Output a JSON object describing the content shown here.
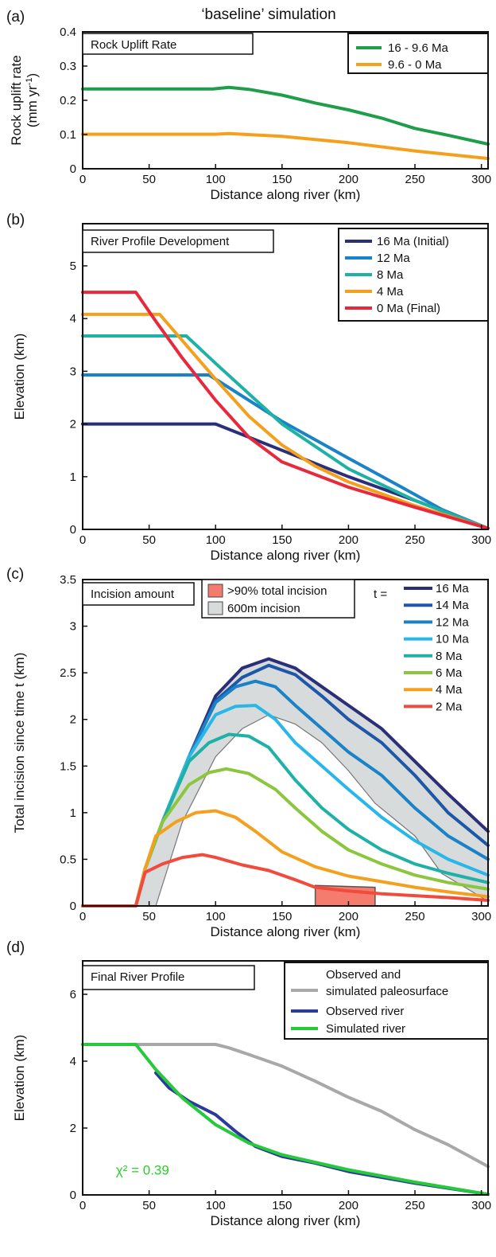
{
  "figure": {
    "title": "‘baseline’ simulation",
    "panel_labels": [
      "(a)",
      "(b)",
      "(c)",
      "(d)"
    ]
  },
  "chart_data": [
    {
      "type": "line",
      "panel": "(a)",
      "box_title": "Rock Uplift Rate",
      "xlabel": "Distance along river (km)",
      "ylabel": "Rock uplift rate",
      "ylabel_units": "(mm yr-1)",
      "xlim": [
        0,
        305
      ],
      "ylim": [
        0,
        0.4
      ],
      "xticks": [
        0,
        50,
        100,
        150,
        200,
        250,
        300
      ],
      "yticks": [
        0,
        0.1,
        0.2,
        0.3,
        0.4
      ],
      "legend_position": "top-right",
      "series": [
        {
          "name": "16 - 9.6 Ma",
          "color": "#1f9e4a",
          "x": [
            0,
            50,
            98,
            110,
            125,
            150,
            175,
            200,
            225,
            250,
            275,
            305
          ],
          "y": [
            0.233,
            0.233,
            0.233,
            0.238,
            0.232,
            0.215,
            0.192,
            0.172,
            0.148,
            0.118,
            0.098,
            0.072
          ]
        },
        {
          "name": "9.6 - 0 Ma",
          "color": "#f5a01c",
          "x": [
            0,
            50,
            100,
            110,
            150,
            200,
            250,
            305
          ],
          "y": [
            0.101,
            0.101,
            0.101,
            0.103,
            0.095,
            0.076,
            0.052,
            0.03
          ]
        }
      ]
    },
    {
      "type": "line",
      "panel": "(b)",
      "box_title": "River Profile Development",
      "xlabel": "Distance along river (km)",
      "ylabel": "Elevation (km)",
      "xlim": [
        0,
        305
      ],
      "ylim": [
        0,
        5.8
      ],
      "xticks": [
        0,
        50,
        100,
        150,
        200,
        250,
        300
      ],
      "yticks": [
        0,
        1,
        2,
        3,
        4,
        5
      ],
      "legend_position": "top-right",
      "series": [
        {
          "name": "16 Ma (Initial)",
          "color": "#2b2f78",
          "x": [
            0,
            100,
            150,
            200,
            250,
            305
          ],
          "y": [
            2.0,
            2.0,
            1.5,
            1.0,
            0.55,
            0.02
          ]
        },
        {
          "name": "12 Ma",
          "color": "#1a83c7",
          "x": [
            0,
            95,
            150,
            200,
            240,
            270,
            305
          ],
          "y": [
            2.93,
            2.93,
            2.05,
            1.35,
            0.8,
            0.38,
            0.02
          ]
        },
        {
          "name": " 8 Ma",
          "color": "#1fb0a6",
          "x": [
            0,
            78,
            100,
            150,
            200,
            250,
            305
          ],
          "y": [
            3.67,
            3.67,
            3.15,
            2.0,
            1.15,
            0.55,
            0.02
          ]
        },
        {
          "name": " 4 Ma",
          "color": "#f5a01c",
          "x": [
            0,
            58,
            100,
            125,
            150,
            175,
            200,
            250,
            305
          ],
          "y": [
            4.08,
            4.08,
            2.85,
            2.15,
            1.6,
            1.2,
            0.9,
            0.45,
            0.02
          ]
        },
        {
          "name": " 0 Ma (Final)",
          "color": "#e8283c",
          "x": [
            0,
            40,
            55,
            75,
            100,
            125,
            150,
            200,
            250,
            305
          ],
          "y": [
            4.5,
            4.5,
            3.95,
            3.25,
            2.45,
            1.75,
            1.28,
            0.8,
            0.42,
            0.02
          ]
        }
      ]
    },
    {
      "type": "line",
      "panel": "(c)",
      "box_title": "Incision amount",
      "xlabel": "Distance along river (km)",
      "ylabel": "Total incision since time t (km)",
      "xlim": [
        0,
        305
      ],
      "ylim": [
        0,
        3.5
      ],
      "xticks": [
        0,
        50,
        100,
        150,
        200,
        250,
        300
      ],
      "yticks": [
        0,
        0.5,
        1,
        1.5,
        2,
        2.5,
        3,
        3.5
      ],
      "legend_position": "top-right",
      "legend_prefix": "t =",
      "shaded_legend": [
        {
          "name": ">90% total incision",
          "color": "#f47c6e"
        },
        {
          "name": "600m incision",
          "color": "#d7dbdc"
        }
      ],
      "red_region": {
        "x": [
          175,
          220
        ],
        "top": [
          0.22,
          0.2
        ]
      },
      "grey_band_lower": {
        "x": [
          0,
          55,
          75,
          100,
          120,
          140,
          160,
          180,
          200,
          220,
          250,
          270,
          305
        ],
        "y": [
          0,
          0,
          0.9,
          1.6,
          1.9,
          2.05,
          1.95,
          1.75,
          1.45,
          1.1,
          0.75,
          0.35,
          0.05
        ]
      },
      "series": [
        {
          "name": "16 Ma",
          "color": "#2b2f78",
          "x": [
            0,
            40,
            47,
            60,
            80,
            100,
            120,
            140,
            160,
            180,
            200,
            225,
            250,
            275,
            305
          ],
          "y": [
            0,
            0,
            0.4,
            0.9,
            1.6,
            2.25,
            2.55,
            2.65,
            2.55,
            2.35,
            2.15,
            1.9,
            1.55,
            1.2,
            0.8
          ]
        },
        {
          "name": "14 Ma",
          "color": "#1f57a8",
          "x": [
            0,
            40,
            47,
            60,
            80,
            100,
            120,
            140,
            160,
            180,
            200,
            225,
            250,
            275,
            305
          ],
          "y": [
            0,
            0,
            0.4,
            0.9,
            1.6,
            2.2,
            2.45,
            2.58,
            2.48,
            2.25,
            2.0,
            1.75,
            1.4,
            1.0,
            0.65
          ]
        },
        {
          "name": "12 Ma",
          "color": "#1a83c7",
          "x": [
            0,
            40,
            47,
            60,
            80,
            100,
            115,
            130,
            145,
            160,
            180,
            200,
            225,
            250,
            275,
            305
          ],
          "y": [
            0,
            0,
            0.4,
            0.9,
            1.6,
            2.18,
            2.35,
            2.41,
            2.35,
            2.15,
            1.9,
            1.65,
            1.4,
            1.05,
            0.75,
            0.5
          ]
        },
        {
          "name": "10 Ma",
          "color": "#29b6e8",
          "x": [
            0,
            40,
            47,
            60,
            80,
            100,
            115,
            130,
            145,
            160,
            180,
            200,
            225,
            250,
            275,
            305
          ],
          "y": [
            0,
            0,
            0.4,
            0.9,
            1.6,
            2.05,
            2.14,
            2.15,
            2.0,
            1.75,
            1.5,
            1.25,
            0.95,
            0.7,
            0.5,
            0.33
          ]
        },
        {
          "name": "8 Ma",
          "color": "#1fb0a6",
          "x": [
            0,
            40,
            47,
            60,
            80,
            95,
            110,
            125,
            140,
            160,
            180,
            200,
            225,
            250,
            275,
            305
          ],
          "y": [
            0,
            0,
            0.4,
            0.9,
            1.55,
            1.75,
            1.84,
            1.82,
            1.7,
            1.35,
            1.05,
            0.82,
            0.6,
            0.45,
            0.35,
            0.25
          ]
        },
        {
          "name": "6 Ma",
          "color": "#8cc63f",
          "x": [
            0,
            40,
            47,
            60,
            80,
            95,
            108,
            125,
            145,
            160,
            180,
            200,
            225,
            250,
            275,
            305
          ],
          "y": [
            0,
            0,
            0.4,
            0.9,
            1.3,
            1.43,
            1.47,
            1.42,
            1.25,
            1.05,
            0.8,
            0.6,
            0.45,
            0.33,
            0.25,
            0.18
          ]
        },
        {
          "name": "4 Ma",
          "color": "#f5a01c",
          "x": [
            0,
            40,
            47,
            55,
            70,
            85,
            100,
            115,
            130,
            150,
            175,
            200,
            225,
            250,
            275,
            305
          ],
          "y": [
            0,
            0,
            0.4,
            0.75,
            0.9,
            1.0,
            1.02,
            0.95,
            0.8,
            0.58,
            0.42,
            0.32,
            0.26,
            0.2,
            0.15,
            0.1
          ]
        },
        {
          "name": "2 Ma",
          "color": "#f04b3c",
          "x": [
            0,
            40,
            47,
            60,
            75,
            90,
            100,
            120,
            140,
            160,
            175,
            200,
            225,
            250,
            275,
            305
          ],
          "y": [
            0,
            0,
            0.36,
            0.45,
            0.52,
            0.55,
            0.52,
            0.44,
            0.38,
            0.28,
            0.2,
            0.16,
            0.13,
            0.11,
            0.09,
            0.06
          ]
        }
      ]
    },
    {
      "type": "line",
      "panel": "(d)",
      "box_title": "Final River Profile",
      "xlabel": "Distance along river (km)",
      "ylabel": "Elevation (km)",
      "xlim": [
        0,
        305
      ],
      "ylim": [
        0,
        7
      ],
      "xticks": [
        0,
        50,
        100,
        150,
        200,
        250,
        300
      ],
      "yticks": [
        0,
        2,
        4,
        6
      ],
      "legend_position": "top-right",
      "annotation": {
        "text": "χ² = 0.39",
        "color": "#2bcf2b",
        "x": 25,
        "y": 0.75
      },
      "series": [
        {
          "name": "Observed and\nsimulated paleosurface",
          "color": "#a8a8a8",
          "x": [
            0,
            100,
            110,
            125,
            150,
            175,
            200,
            225,
            250,
            275,
            305
          ],
          "y": [
            4.5,
            4.5,
            4.4,
            4.2,
            3.85,
            3.4,
            2.92,
            2.5,
            1.95,
            1.5,
            0.85
          ]
        },
        {
          "name": "Observed river",
          "color": "#2b3b9c",
          "x": [
            55,
            65,
            80,
            100,
            115,
            130,
            150,
            175,
            200,
            250,
            305
          ],
          "y": [
            3.65,
            3.2,
            2.8,
            2.4,
            1.9,
            1.45,
            1.15,
            0.95,
            0.7,
            0.35,
            0.02
          ]
        },
        {
          "name": "Simulated river",
          "color": "#25c93a",
          "x": [
            0,
            40,
            55,
            75,
            100,
            125,
            150,
            200,
            250,
            305
          ],
          "y": [
            4.5,
            4.5,
            3.75,
            2.9,
            2.1,
            1.55,
            1.2,
            0.75,
            0.38,
            0.02
          ]
        }
      ]
    }
  ]
}
